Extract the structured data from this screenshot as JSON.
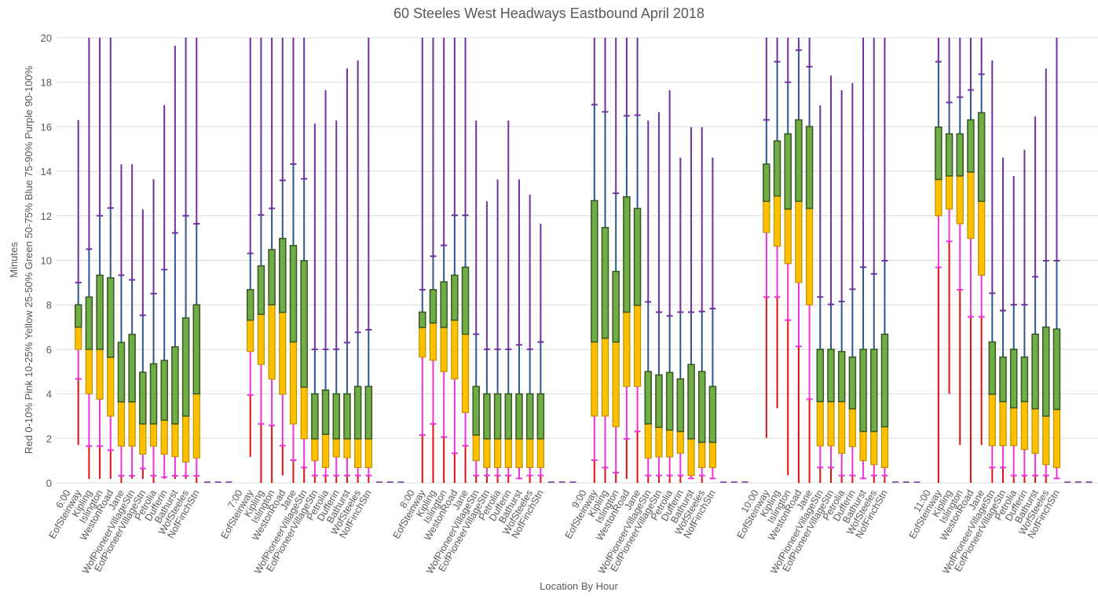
{
  "chart_data": {
    "type": "box",
    "title": "60 Steeles West Headways Eastbound April 2018",
    "xlabel": "Location By Hour",
    "ylabel_lines": [
      "Minutes",
      "Red 0-10%  Pink 10-25%  Yellow 25-50%  Green 50-75%  Blue 75-90%  Purple 90-100%"
    ],
    "ylim": [
      0,
      20
    ],
    "yticks": [
      0,
      2,
      4,
      6,
      8,
      10,
      12,
      14,
      16,
      18,
      20
    ],
    "grid": true,
    "legend": "none",
    "percentile_keys": [
      "p0",
      "p10",
      "p25",
      "p50",
      "p75",
      "p90",
      "p100"
    ],
    "colors": {
      "red": "#e01010",
      "pink": "#ee33dd",
      "yellow": "#ffc000",
      "yellow_border": "#c09000",
      "green": "#70ad47",
      "green_border": "#375623",
      "blue": "#2f5597",
      "purple": "#7030a0",
      "grid": "#d9d9d9",
      "text": "#595959"
    },
    "stations": [
      "EofSteinway",
      "Kipling",
      "Islington",
      "WestonRoad",
      "Jane",
      "WofPioneerVillageStn",
      "EofPioneerVillageStn",
      "Petrolia",
      "Dufferin",
      "Bathurst",
      "WofSteeles",
      "NofFinchStn"
    ],
    "groups": [
      {
        "hour": "6:00",
        "boxes": [
          [
            1.7,
            4.67,
            6.0,
            7.0,
            8.0,
            9.0,
            16.3
          ],
          [
            0.18,
            1.65,
            4.0,
            6.0,
            8.35,
            10.5,
            20
          ],
          [
            0.18,
            1.65,
            3.76,
            6.0,
            9.33,
            12.0,
            20
          ],
          [
            0.18,
            1.47,
            3.0,
            5.64,
            9.21,
            12.35,
            20
          ],
          [
            0.0,
            0.32,
            1.65,
            3.64,
            6.31,
            9.33,
            14.31
          ],
          [
            0.18,
            0.32,
            1.65,
            3.64,
            6.67,
            9.12,
            14.31
          ],
          [
            0.18,
            0.65,
            1.29,
            2.65,
            4.97,
            7.53,
            12.29
          ],
          [
            0.0,
            0.32,
            1.65,
            2.65,
            5.35,
            8.5,
            13.64
          ],
          [
            0.18,
            0.26,
            1.29,
            2.82,
            5.5,
            9.58,
            16.97
          ],
          [
            0.18,
            0.32,
            1.18,
            2.65,
            6.11,
            11.23,
            19.64
          ],
          [
            0.18,
            0.32,
            0.94,
            3.0,
            7.41,
            12.0,
            20
          ],
          [
            0.0,
            0.32,
            1.12,
            4.0,
            8.0,
            11.64,
            20
          ]
        ]
      },
      {
        "hour": "7:00",
        "boxes": [
          [
            1.17,
            3.94,
            5.9,
            7.31,
            8.68,
            10.31,
            20
          ],
          [
            0.0,
            2.65,
            5.32,
            7.57,
            9.75,
            12.04,
            20
          ],
          [
            0.0,
            2.58,
            4.66,
            8.0,
            10.48,
            12.33,
            20
          ],
          [
            0.33,
            1.67,
            3.98,
            7.66,
            10.98,
            13.59,
            20
          ],
          [
            0.0,
            1.02,
            2.65,
            6.33,
            10.66,
            14.32,
            20
          ],
          [
            0.0,
            0.69,
            1.98,
            4.3,
            9.98,
            13.66,
            20
          ],
          [
            0.0,
            0.33,
            1.0,
            1.98,
            4.0,
            6.0,
            16.14
          ],
          [
            0.0,
            0.33,
            0.69,
            2.18,
            4.17,
            6.0,
            17.64
          ],
          [
            0.0,
            0.33,
            1.17,
            1.98,
            4.0,
            6.0,
            16.28
          ],
          [
            0.0,
            0.33,
            1.13,
            1.98,
            4.0,
            6.3,
            18.62
          ],
          [
            0.0,
            0.33,
            0.69,
            1.98,
            4.33,
            6.76,
            18.98
          ],
          [
            0.0,
            0.33,
            0.69,
            1.98,
            4.33,
            6.88,
            20
          ]
        ]
      },
      {
        "hour": "8:00",
        "boxes": [
          [
            0.0,
            2.15,
            5.65,
            6.98,
            7.67,
            8.68,
            20
          ],
          [
            0.0,
            2.65,
            5.51,
            7.18,
            8.68,
            10.18,
            20
          ],
          [
            0.0,
            2.06,
            5.0,
            6.98,
            9.03,
            10.67,
            20
          ],
          [
            0.0,
            1.33,
            4.67,
            7.31,
            9.33,
            12.02,
            20
          ],
          [
            0.0,
            1.67,
            3.16,
            6.68,
            9.69,
            12.02,
            20
          ],
          [
            0.0,
            0.33,
            1.0,
            2.15,
            4.33,
            6.68,
            16.28
          ],
          [
            0.0,
            0.33,
            0.69,
            1.98,
            4.0,
            6.0,
            12.65
          ],
          [
            0.0,
            0.33,
            0.69,
            1.98,
            4.0,
            6.0,
            13.63
          ],
          [
            0.0,
            0.33,
            0.69,
            1.98,
            4.0,
            6.0,
            16.28
          ],
          [
            0.2,
            0.2,
            0.69,
            1.98,
            4.0,
            6.2,
            13.63
          ],
          [
            0.0,
            0.33,
            0.69,
            1.98,
            4.0,
            6.0,
            12.95
          ],
          [
            0.0,
            0.33,
            0.69,
            1.98,
            4.0,
            6.33,
            11.64
          ]
        ]
      },
      {
        "hour": "9:00",
        "boxes": [
          [
            0.0,
            1.02,
            3.0,
            6.33,
            12.68,
            16.99,
            20
          ],
          [
            0.0,
            0.69,
            3.0,
            6.5,
            11.47,
            16.67,
            20
          ],
          [
            0.0,
            0.46,
            2.52,
            6.33,
            9.5,
            13.01,
            20
          ],
          [
            0.18,
            1.98,
            4.33,
            7.67,
            12.85,
            16.49,
            20
          ],
          [
            0.0,
            2.31,
            4.33,
            7.98,
            12.33,
            16.52,
            20
          ],
          [
            0.0,
            0.33,
            1.11,
            2.65,
            5.0,
            8.13,
            16.28
          ],
          [
            0.0,
            0.33,
            1.17,
            2.5,
            4.85,
            7.67,
            16.66
          ],
          [
            0.0,
            0.33,
            1.17,
            2.37,
            4.96,
            7.5,
            17.64
          ],
          [
            0.0,
            0.33,
            1.33,
            2.31,
            4.67,
            7.67,
            14.61
          ],
          [
            0.2,
            0.2,
            0.33,
            1.98,
            5.32,
            7.67,
            15.98
          ],
          [
            0.0,
            0.33,
            0.69,
            1.82,
            5.0,
            7.7,
            15.98
          ],
          [
            0.2,
            0.2,
            0.69,
            1.82,
            4.33,
            7.83,
            14.61
          ]
        ]
      },
      {
        "hour": "10:00",
        "boxes": [
          [
            2.02,
            8.35,
            11.25,
            12.65,
            14.32,
            16.31,
            20
          ],
          [
            3.35,
            8.35,
            10.63,
            12.89,
            15.36,
            18.92,
            20
          ],
          [
            0.35,
            7.31,
            9.85,
            12.3,
            15.68,
            18.0,
            20
          ],
          [
            0.0,
            6.13,
            9.0,
            12.65,
            16.31,
            19.44,
            20
          ],
          [
            0.0,
            3.76,
            8.0,
            12.33,
            16.01,
            18.7,
            20
          ],
          [
            0.0,
            0.69,
            1.66,
            3.65,
            6.0,
            8.35,
            16.96
          ],
          [
            0.0,
            0.69,
            1.66,
            3.65,
            6.0,
            8.02,
            18.3
          ],
          [
            0.0,
            0.33,
            1.33,
            3.65,
            5.9,
            8.15,
            17.64
          ],
          [
            0.0,
            0.33,
            1.63,
            3.33,
            5.65,
            8.7,
            17.96
          ],
          [
            0.2,
            0.2,
            1.0,
            2.31,
            6.0,
            9.69,
            20
          ],
          [
            0.0,
            0.33,
            0.82,
            2.31,
            6.0,
            9.39,
            20
          ],
          [
            0.0,
            0.33,
            0.69,
            2.52,
            6.68,
            9.98,
            20
          ]
        ]
      },
      {
        "hour": "11:00",
        "boxes": [
          [
            0.0,
            9.68,
            12.0,
            13.63,
            15.98,
            18.92,
            20
          ],
          [
            4.0,
            10.85,
            12.3,
            13.79,
            15.68,
            17.09,
            20
          ],
          [
            1.7,
            8.68,
            11.64,
            13.79,
            15.68,
            17.33,
            20
          ],
          [
            0.0,
            7.46,
            10.98,
            13.96,
            16.31,
            17.65,
            20
          ],
          [
            1.7,
            7.46,
            9.33,
            12.65,
            16.63,
            18.36,
            20
          ],
          [
            0.0,
            0.69,
            1.67,
            3.98,
            6.33,
            8.52,
            18.98
          ],
          [
            0.0,
            0.69,
            1.67,
            3.65,
            5.65,
            7.74,
            14.61
          ],
          [
            0.0,
            0.33,
            1.67,
            3.37,
            6.0,
            8.0,
            13.79
          ],
          [
            0.0,
            0.33,
            1.5,
            3.65,
            5.65,
            8.0,
            14.96
          ],
          [
            0.0,
            0.33,
            1.33,
            3.33,
            6.68,
            9.26,
            16.46
          ],
          [
            0.0,
            0.33,
            0.82,
            3.0,
            7.0,
            9.98,
            18.62
          ],
          [
            0.2,
            0.2,
            0.69,
            3.3,
            6.91,
            9.98,
            20
          ]
        ]
      }
    ],
    "empty_slots_per_group": 3
  }
}
